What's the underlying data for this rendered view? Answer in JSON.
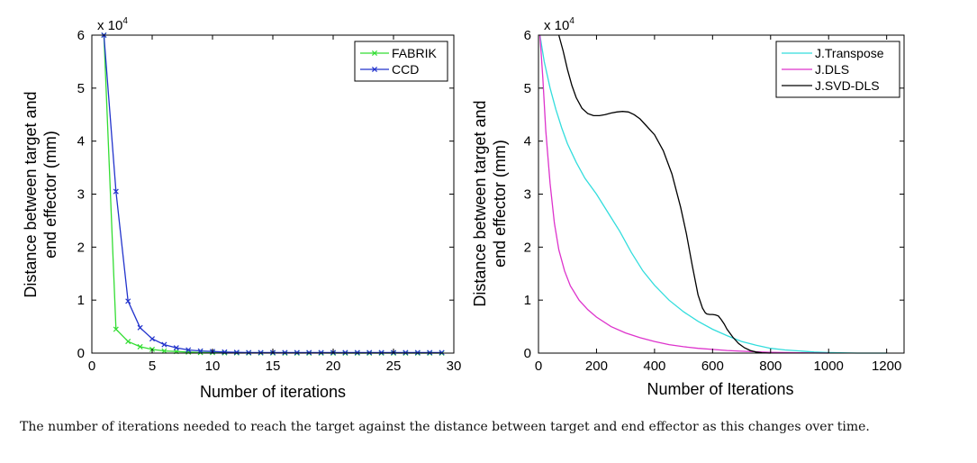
{
  "caption": "The number of iterations needed to reach the target against the distance between target and end effector as this changes over time.",
  "chart_data": [
    {
      "type": "line",
      "xlabel": "Number of iterations",
      "ylabel_line1": "Distance between target and",
      "ylabel_line2": "end effector (mm)",
      "exponent_label": "x 10",
      "exponent_power": "4",
      "xlim": [
        0,
        30
      ],
      "ylim": [
        0,
        6
      ],
      "y_scale": 10000,
      "xticks": [
        0,
        5,
        10,
        15,
        20,
        25,
        30
      ],
      "yticks": [
        0,
        1,
        2,
        3,
        4,
        5,
        6
      ],
      "legend_position": "top-right",
      "series": [
        {
          "name": "FABRIK",
          "color": "#33dd33",
          "marker": "x",
          "x": [
            1,
            2,
            3,
            4,
            5,
            6,
            7,
            8,
            9,
            10,
            11,
            12,
            13,
            14,
            15,
            16,
            17,
            18,
            19,
            20,
            21,
            22,
            23,
            24,
            25,
            26,
            27,
            28,
            29
          ],
          "y": [
            6.0,
            0.45,
            0.22,
            0.12,
            0.07,
            0.04,
            0.03,
            0.02,
            0.01,
            0.01,
            0.005,
            0.004,
            0.003,
            0.002,
            0.002,
            0.001,
            0.001,
            0.001,
            0.001,
            0.0,
            0.0,
            0.0,
            0.0,
            0.0,
            0.0,
            0.0,
            0.0,
            0.0,
            0.0
          ]
        },
        {
          "name": "CCD",
          "color": "#2233cc",
          "marker": "x",
          "x": [
            1,
            2,
            3,
            4,
            5,
            6,
            7,
            8,
            9,
            10,
            11,
            12,
            13,
            14,
            15,
            16,
            17,
            18,
            19,
            20,
            21,
            22,
            23,
            24,
            25,
            26,
            27,
            28,
            29
          ],
          "y": [
            6.0,
            3.05,
            0.98,
            0.48,
            0.27,
            0.16,
            0.1,
            0.06,
            0.04,
            0.03,
            0.02,
            0.015,
            0.01,
            0.01,
            0.01,
            0.01,
            0.01,
            0.01,
            0.01,
            0.01,
            0.01,
            0.01,
            0.01,
            0.01,
            0.01,
            0.01,
            0.01,
            0.01,
            0.01
          ]
        }
      ]
    },
    {
      "type": "line",
      "xlabel": "Number of Iterations",
      "ylabel_line1": "Distance between target and",
      "ylabel_line2": "end effector (mm)",
      "exponent_label": "x 10",
      "exponent_power": "4",
      "xlim": [
        0,
        1260
      ],
      "ylim": [
        0,
        6
      ],
      "y_scale": 10000,
      "xticks": [
        0,
        200,
        400,
        600,
        800,
        1000,
        1200
      ],
      "yticks": [
        0,
        1,
        2,
        3,
        4,
        5,
        6
      ],
      "legend_position": "top-right",
      "series": [
        {
          "name": "J.Transpose",
          "color": "#33dddd",
          "x": [
            5,
            20,
            40,
            60,
            80,
            100,
            130,
            160,
            200,
            240,
            280,
            320,
            360,
            400,
            450,
            500,
            550,
            600,
            650,
            700,
            750,
            800,
            850,
            900,
            950,
            1000,
            1100,
            1200
          ],
          "y": [
            6.0,
            5.5,
            5.0,
            4.6,
            4.25,
            3.95,
            3.6,
            3.3,
            3.0,
            2.65,
            2.3,
            1.9,
            1.55,
            1.28,
            1.0,
            0.78,
            0.6,
            0.45,
            0.33,
            0.22,
            0.15,
            0.09,
            0.06,
            0.04,
            0.02,
            0.01,
            0.0,
            0.0
          ]
        },
        {
          "name": "J.DLS",
          "color": "#dd33cc",
          "x": [
            5,
            15,
            25,
            40,
            55,
            70,
            90,
            110,
            140,
            170,
            200,
            250,
            300,
            350,
            400,
            450,
            500,
            550,
            600,
            650,
            700,
            750,
            800,
            850,
            900,
            950,
            1000
          ],
          "y": [
            6.0,
            5.2,
            4.2,
            3.2,
            2.45,
            1.95,
            1.55,
            1.27,
            1.0,
            0.82,
            0.68,
            0.5,
            0.38,
            0.29,
            0.22,
            0.16,
            0.12,
            0.09,
            0.07,
            0.05,
            0.035,
            0.025,
            0.015,
            0.01,
            0.005,
            0.002,
            0.0
          ]
        },
        {
          "name": "J.SVD-DLS",
          "color": "#000000",
          "x": [
            70,
            85,
            100,
            115,
            130,
            150,
            170,
            190,
            210,
            230,
            250,
            270,
            290,
            310,
            330,
            350,
            370,
            400,
            430,
            460,
            490,
            510,
            530,
            550,
            565,
            575,
            580,
            590,
            600,
            610,
            620,
            630,
            640,
            650,
            670,
            690,
            710,
            730,
            750,
            770,
            800
          ],
          "y": [
            6.0,
            5.7,
            5.35,
            5.05,
            4.82,
            4.62,
            4.52,
            4.48,
            4.48,
            4.5,
            4.53,
            4.55,
            4.56,
            4.55,
            4.5,
            4.42,
            4.3,
            4.12,
            3.82,
            3.38,
            2.75,
            2.25,
            1.65,
            1.1,
            0.85,
            0.76,
            0.74,
            0.73,
            0.73,
            0.72,
            0.7,
            0.63,
            0.55,
            0.45,
            0.3,
            0.18,
            0.1,
            0.05,
            0.02,
            0.005,
            0.0
          ]
        }
      ]
    }
  ]
}
